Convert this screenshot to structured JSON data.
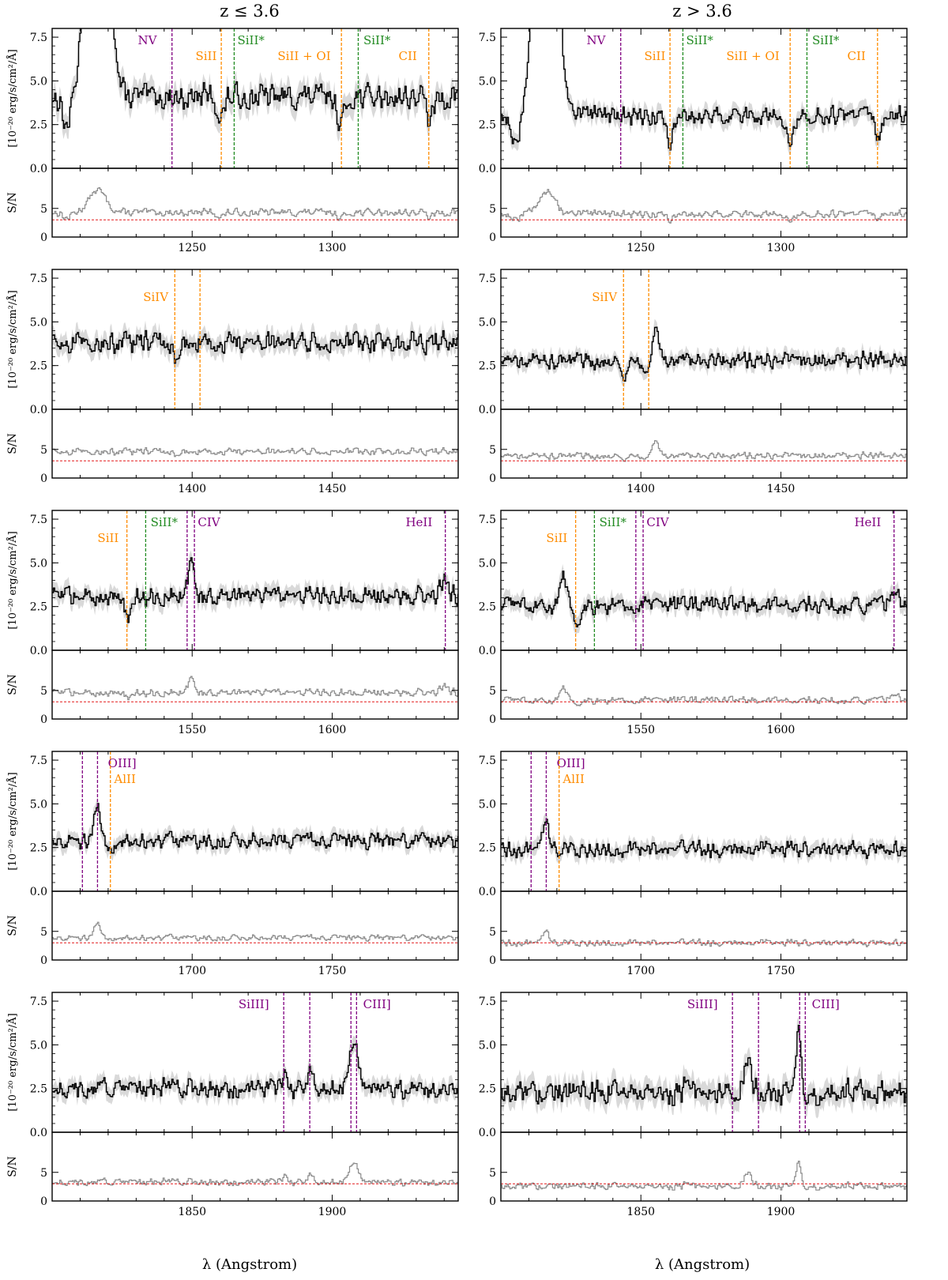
{
  "figure": {
    "columns": [
      {
        "title": "z ≤ 3.6"
      },
      {
        "title": "z > 3.6"
      }
    ],
    "xlabel": "λ (Angstrom)",
    "flux_ylabel": "[10⁻²⁰ erg/s/cm²/Å]",
    "sn_ylabel": "S/N",
    "colors": {
      "flux_line": "#000000",
      "flux_band": "#d9d9d9",
      "sn_line": "#8c8c8c",
      "threshold": "#e41a1c",
      "purple": "#800080",
      "orange": "#ff8c00",
      "green": "#228b22"
    }
  },
  "chart_data": [
    {
      "type": "line",
      "column": "z ≤ 3.6",
      "row": 1,
      "xlim": [
        1200,
        1345
      ],
      "xticks": [
        1250,
        1300
      ],
      "flux_ylim": [
        0,
        8
      ],
      "flux_yticks": [
        "0.0",
        "2.5",
        "5.0",
        "7.5"
      ],
      "sn_ylim": [
        0,
        12
      ],
      "sn_yticks": [
        "0",
        "5"
      ],
      "sn_threshold": 3,
      "flux_level": 4.1,
      "flux_noise": 0.55,
      "sn_level": 4.3,
      "sn_noise": 0.5,
      "peaks": [
        {
          "x": 1216,
          "amp": 30,
          "width": 3
        }
      ],
      "absorptions": [
        {
          "x": 1260,
          "amp": 1.2
        },
        {
          "x": 1303,
          "amp": 1.5
        },
        {
          "x": 1335,
          "amp": 1.3
        },
        {
          "x": 1205,
          "amp": 1.8
        }
      ],
      "lines": [
        {
          "x": 1242.8,
          "label": "NV",
          "color": "purple",
          "label_x": 1234,
          "label_row": 0
        },
        {
          "x": 1260.4,
          "label": "SiII",
          "color": "orange",
          "label_x": 1255,
          "label_row": 1
        },
        {
          "x": 1265.0,
          "label": "SiII*",
          "color": "green",
          "label_x": 1271,
          "label_row": 0
        },
        {
          "x": 1303.3,
          "label": "SiII + OI",
          "color": "orange",
          "label_x": 1290,
          "label_row": 1
        },
        {
          "x": 1309.3,
          "label": "SiII*",
          "color": "green",
          "label_x": 1316,
          "label_row": 0
        },
        {
          "x": 1334.5,
          "label": "CII",
          "color": "orange",
          "label_x": 1327,
          "label_row": 1
        }
      ]
    },
    {
      "type": "line",
      "column": "z > 3.6",
      "row": 1,
      "xlim": [
        1200,
        1345
      ],
      "xticks": [
        1250,
        1300
      ],
      "flux_ylim": [
        0,
        8
      ],
      "flux_yticks": [
        "0.0",
        "2.5",
        "5.0",
        "7.5"
      ],
      "sn_ylim": [
        0,
        12
      ],
      "sn_yticks": [
        "0",
        "5"
      ],
      "sn_threshold": 3,
      "flux_level": 3.0,
      "flux_noise": 0.4,
      "sn_level": 4.0,
      "sn_noise": 0.5,
      "peaks": [
        {
          "x": 1216,
          "amp": 30,
          "width": 3
        }
      ],
      "absorptions": [
        {
          "x": 1260,
          "amp": 1.4
        },
        {
          "x": 1303,
          "amp": 1.2
        },
        {
          "x": 1335,
          "amp": 1.2
        },
        {
          "x": 1205,
          "amp": 1.8
        }
      ],
      "lines": [
        {
          "x": 1242.8,
          "label": "NV",
          "color": "purple",
          "label_x": 1234,
          "label_row": 0
        },
        {
          "x": 1260.4,
          "label": "SiII",
          "color": "orange",
          "label_x": 1255,
          "label_row": 1
        },
        {
          "x": 1265.0,
          "label": "SiII*",
          "color": "green",
          "label_x": 1271,
          "label_row": 0
        },
        {
          "x": 1303.3,
          "label": "SiII + OI",
          "color": "orange",
          "label_x": 1290,
          "label_row": 1
        },
        {
          "x": 1309.3,
          "label": "SiII*",
          "color": "green",
          "label_x": 1316,
          "label_row": 0
        },
        {
          "x": 1334.5,
          "label": "CII",
          "color": "orange",
          "label_x": 1327,
          "label_row": 1
        }
      ]
    },
    {
      "type": "line",
      "column": "z ≤ 3.6",
      "row": 2,
      "xlim": [
        1350,
        1495
      ],
      "xticks": [
        1400,
        1450
      ],
      "flux_ylim": [
        0,
        8
      ],
      "flux_yticks": [
        "0.0",
        "2.5",
        "5.0",
        "7.5"
      ],
      "sn_ylim": [
        0,
        12
      ],
      "sn_yticks": [
        "0",
        "5"
      ],
      "sn_threshold": 3,
      "flux_level": 3.8,
      "flux_noise": 0.45,
      "sn_level": 4.6,
      "sn_noise": 0.45,
      "peaks": [],
      "absorptions": [
        {
          "x": 1393.8,
          "amp": 0.8
        }
      ],
      "lines": [
        {
          "x": 1393.8,
          "label": "SiIV",
          "color": "orange",
          "label_x": 1387,
          "label_row": 1
        },
        {
          "x": 1402.8,
          "label": "",
          "color": "orange",
          "label_x": 1402.8,
          "label_row": 1
        }
      ]
    },
    {
      "type": "line",
      "column": "z > 3.6",
      "row": 2,
      "xlim": [
        1350,
        1495
      ],
      "xticks": [
        1400,
        1450
      ],
      "flux_ylim": [
        0,
        8
      ],
      "flux_yticks": [
        "0.0",
        "2.5",
        "5.0",
        "7.5"
      ],
      "sn_ylim": [
        0,
        12
      ],
      "sn_yticks": [
        "0",
        "5"
      ],
      "sn_threshold": 3,
      "flux_level": 2.8,
      "flux_noise": 0.35,
      "sn_level": 3.9,
      "sn_noise": 0.45,
      "peaks": [
        {
          "x": 1405,
          "amp": 1.9,
          "width": 1.2
        }
      ],
      "absorptions": [
        {
          "x": 1393.8,
          "amp": 0.8
        },
        {
          "x": 1402.8,
          "amp": 1.0
        }
      ],
      "lines": [
        {
          "x": 1393.8,
          "label": "SiIV",
          "color": "orange",
          "label_x": 1387,
          "label_row": 1
        },
        {
          "x": 1402.8,
          "label": "",
          "color": "orange",
          "label_x": 1402.8,
          "label_row": 1
        }
      ]
    },
    {
      "type": "line",
      "column": "z ≤ 3.6",
      "row": 3,
      "xlim": [
        1500,
        1645
      ],
      "xticks": [
        1550,
        1600
      ],
      "flux_ylim": [
        0,
        8
      ],
      "flux_yticks": [
        "0.0",
        "2.5",
        "5.0",
        "7.5"
      ],
      "sn_ylim": [
        0,
        12
      ],
      "sn_yticks": [
        "0",
        "5"
      ],
      "sn_threshold": 3,
      "flux_level": 3.1,
      "flux_noise": 0.4,
      "sn_level": 4.6,
      "sn_noise": 0.5,
      "peaks": [
        {
          "x": 1549.5,
          "amp": 1.8,
          "width": 1.2
        },
        {
          "x": 1640,
          "amp": 0.8,
          "width": 1.5
        }
      ],
      "absorptions": [
        {
          "x": 1526.7,
          "amp": 1.0
        }
      ],
      "lines": [
        {
          "x": 1526.7,
          "label": "SiII",
          "color": "orange",
          "label_x": 1520,
          "label_row": 1
        },
        {
          "x": 1533.4,
          "label": "SiII*",
          "color": "green",
          "label_x": 1540,
          "label_row": 0
        },
        {
          "x": 1548.2,
          "label": "",
          "color": "purple",
          "label_x": 1548.2,
          "label_row": 0
        },
        {
          "x": 1550.8,
          "label": "CIV",
          "color": "purple",
          "label_x": 1556,
          "label_row": 0
        },
        {
          "x": 1640.4,
          "label": "HeII",
          "color": "purple",
          "label_x": 1631,
          "label_row": 0
        }
      ]
    },
    {
      "type": "line",
      "column": "z > 3.6",
      "row": 3,
      "xlim": [
        1500,
        1645
      ],
      "xticks": [
        1550,
        1600
      ],
      "flux_ylim": [
        0,
        8
      ],
      "flux_yticks": [
        "0.0",
        "2.5",
        "5.0",
        "7.5"
      ],
      "sn_ylim": [
        0,
        12
      ],
      "sn_yticks": [
        "0",
        "5"
      ],
      "sn_threshold": 3,
      "flux_level": 2.6,
      "flux_noise": 0.4,
      "sn_level": 3.3,
      "sn_noise": 0.5,
      "peaks": [
        {
          "x": 1522,
          "amp": 1.8,
          "width": 1.0
        },
        {
          "x": 1640,
          "amp": 1.0,
          "width": 1.5
        }
      ],
      "absorptions": [
        {
          "x": 1526.7,
          "amp": 1.0
        }
      ],
      "lines": [
        {
          "x": 1526.7,
          "label": "SiII",
          "color": "orange",
          "label_x": 1520,
          "label_row": 1
        },
        {
          "x": 1533.4,
          "label": "SiII*",
          "color": "green",
          "label_x": 1540,
          "label_row": 0
        },
        {
          "x": 1548.2,
          "label": "",
          "color": "purple",
          "label_x": 1548.2,
          "label_row": 0
        },
        {
          "x": 1550.8,
          "label": "CIV",
          "color": "purple",
          "label_x": 1556,
          "label_row": 0
        },
        {
          "x": 1640.4,
          "label": "HeII",
          "color": "purple",
          "label_x": 1631,
          "label_row": 0
        }
      ]
    },
    {
      "type": "line",
      "column": "z ≤ 3.6",
      "row": 4,
      "xlim": [
        1650,
        1795
      ],
      "xticks": [
        1700,
        1750
      ],
      "flux_ylim": [
        0,
        8
      ],
      "flux_yticks": [
        "0.0",
        "2.5",
        "5.0",
        "7.5"
      ],
      "sn_ylim": [
        0,
        12
      ],
      "sn_yticks": [
        "0",
        "5"
      ],
      "sn_threshold": 3,
      "flux_level": 2.9,
      "flux_noise": 0.35,
      "sn_level": 3.9,
      "sn_noise": 0.4,
      "peaks": [
        {
          "x": 1666,
          "amp": 1.7,
          "width": 1.2
        }
      ],
      "absorptions": [
        {
          "x": 1670.8,
          "amp": 0.6
        }
      ],
      "lines": [
        {
          "x": 1660.8,
          "label": "",
          "color": "purple",
          "label_x": 1660.8,
          "label_row": 0
        },
        {
          "x": 1666.2,
          "label": "OIII]",
          "color": "purple",
          "label_x": 1675,
          "label_row": 0
        },
        {
          "x": 1670.8,
          "label": "AlII",
          "color": "orange",
          "label_x": 1676,
          "label_row": 1
        }
      ]
    },
    {
      "type": "line",
      "column": "z > 3.6",
      "row": 4,
      "xlim": [
        1650,
        1795
      ],
      "xticks": [
        1700,
        1750
      ],
      "flux_ylim": [
        0,
        8
      ],
      "flux_yticks": [
        "0.0",
        "2.5",
        "5.0",
        "7.5"
      ],
      "sn_ylim": [
        0,
        12
      ],
      "sn_yticks": [
        "0",
        "5"
      ],
      "sn_threshold": 3,
      "flux_level": 2.4,
      "flux_noise": 0.35,
      "sn_level": 3.0,
      "sn_noise": 0.45,
      "peaks": [
        {
          "x": 1666,
          "amp": 1.6,
          "width": 1.0
        }
      ],
      "absorptions": [],
      "lines": [
        {
          "x": 1660.8,
          "label": "",
          "color": "purple",
          "label_x": 1660.8,
          "label_row": 0
        },
        {
          "x": 1666.2,
          "label": "OIII]",
          "color": "purple",
          "label_x": 1675,
          "label_row": 0
        },
        {
          "x": 1670.8,
          "label": "AlII",
          "color": "orange",
          "label_x": 1676,
          "label_row": 1
        }
      ]
    },
    {
      "type": "line",
      "column": "z ≤ 3.6",
      "row": 5,
      "xlim": [
        1800,
        1945
      ],
      "xticks": [
        1850,
        1900
      ],
      "flux_ylim": [
        0,
        8
      ],
      "flux_yticks": [
        "0.0",
        "2.5",
        "5.0",
        "7.5"
      ],
      "sn_ylim": [
        0,
        12
      ],
      "sn_yticks": [
        "0",
        "5"
      ],
      "sn_threshold": 3,
      "flux_level": 2.5,
      "flux_noise": 0.4,
      "sn_level": 3.3,
      "sn_noise": 0.45,
      "peaks": [
        {
          "x": 1907.5,
          "amp": 2.6,
          "width": 1.5
        },
        {
          "x": 1883,
          "amp": 1.0,
          "width": 0.8
        },
        {
          "x": 1892,
          "amp": 0.9,
          "width": 0.8
        }
      ],
      "absorptions": [],
      "lines": [
        {
          "x": 1882.7,
          "label": "SiIII]",
          "color": "purple",
          "label_x": 1872,
          "label_row": 0
        },
        {
          "x": 1892.0,
          "label": "",
          "color": "purple",
          "label_x": 1892,
          "label_row": 0
        },
        {
          "x": 1906.7,
          "label": "",
          "color": "purple",
          "label_x": 1906.7,
          "label_row": 0
        },
        {
          "x": 1908.7,
          "label": "CIII]",
          "color": "purple",
          "label_x": 1916,
          "label_row": 0
        }
      ]
    },
    {
      "type": "line",
      "column": "z > 3.6",
      "row": 5,
      "xlim": [
        1800,
        1945
      ],
      "xticks": [
        1850,
        1900
      ],
      "flux_ylim": [
        0,
        8
      ],
      "flux_yticks": [
        "0.0",
        "2.5",
        "5.0",
        "7.5"
      ],
      "sn_ylim": [
        0,
        12
      ],
      "sn_yticks": [
        "0",
        "5"
      ],
      "sn_threshold": 3,
      "flux_level": 2.3,
      "flux_noise": 0.55,
      "sn_level": 2.6,
      "sn_noise": 0.5,
      "peaks": [
        {
          "x": 1906,
          "amp": 3.3,
          "width": 0.9
        },
        {
          "x": 1888,
          "amp": 1.7,
          "width": 1.5
        }
      ],
      "absorptions": [],
      "lines": [
        {
          "x": 1882.7,
          "label": "SiIII]",
          "color": "purple",
          "label_x": 1872,
          "label_row": 0
        },
        {
          "x": 1892.0,
          "label": "",
          "color": "purple",
          "label_x": 1892,
          "label_row": 0
        },
        {
          "x": 1906.7,
          "label": "",
          "color": "purple",
          "label_x": 1906.7,
          "label_row": 0
        },
        {
          "x": 1908.7,
          "label": "CIII]",
          "color": "purple",
          "label_x": 1916,
          "label_row": 0
        }
      ]
    }
  ]
}
